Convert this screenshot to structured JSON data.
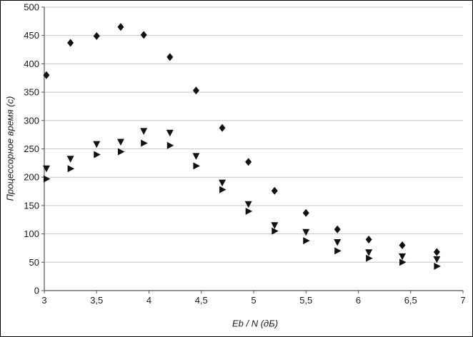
{
  "chart_data": {
    "type": "scatter",
    "title": "",
    "xlabel": "Eb / N (дБ)",
    "ylabel": "Процессорное время (с)",
    "xlim": [
      3,
      7
    ],
    "ylim": [
      0,
      500
    ],
    "grid": true,
    "legend_position": "none",
    "x_ticks": [
      "3",
      "3,5",
      "4",
      "4,5",
      "5",
      "5,5",
      "6",
      "6,5",
      "7"
    ],
    "x_tick_values": [
      3,
      3.5,
      4,
      4.5,
      5,
      5.5,
      6,
      6.5,
      7
    ],
    "y_ticks": [
      "0",
      "50",
      "100",
      "150",
      "200",
      "250",
      "300",
      "350",
      "400",
      "450",
      "500"
    ],
    "y_tick_values": [
      0,
      50,
      100,
      150,
      200,
      250,
      300,
      350,
      400,
      450,
      500
    ],
    "x": [
      3.02,
      3.25,
      3.5,
      3.73,
      3.95,
      4.2,
      4.45,
      4.7,
      4.95,
      5.2,
      5.5,
      5.8,
      6.1,
      6.42,
      6.75
    ],
    "series": [
      {
        "name": "series-diamond",
        "marker": "diamond",
        "color": "#111111",
        "values": [
          380,
          437,
          449,
          465,
          451,
          412,
          353,
          287,
          227,
          176,
          137,
          108,
          90,
          80,
          68
        ]
      },
      {
        "name": "series-triangle-down",
        "marker": "triangle-down",
        "color": "#111111",
        "values": [
          215,
          232,
          258,
          262,
          281,
          278,
          237,
          190,
          152,
          115,
          103,
          85,
          67,
          60,
          55
        ]
      },
      {
        "name": "series-triangle-right",
        "marker": "triangle-right",
        "color": "#111111",
        "values": [
          197,
          215,
          240,
          245,
          260,
          256,
          220,
          178,
          140,
          105,
          88,
          70,
          57,
          50,
          43
        ]
      }
    ],
    "colors": {
      "marker": "#111111",
      "gridline": "#c6c6c6",
      "axis": "#555555",
      "tick_text": "#1a1a1a"
    }
  }
}
